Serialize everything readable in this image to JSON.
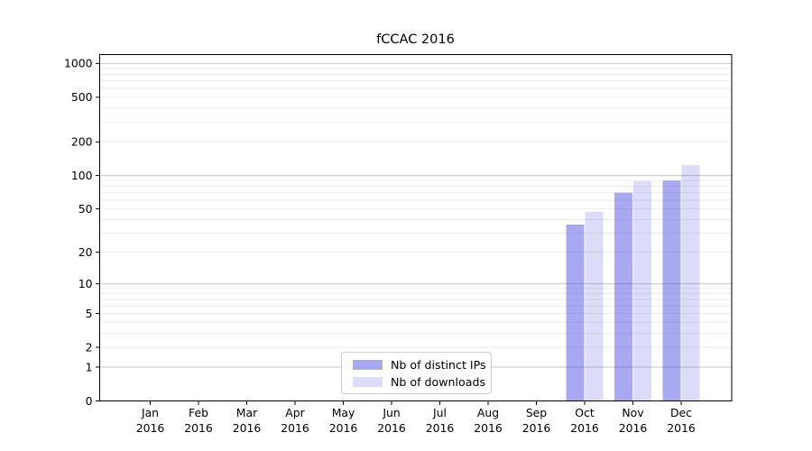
{
  "figure": {
    "title": "fCCAC 2016"
  },
  "legend": {
    "items": [
      {
        "label": "Nb of distinct IPs",
        "color": "rgba(40,40,220,0.40)"
      },
      {
        "label": "Nb of downloads",
        "color": "rgba(40,40,220,0.165)"
      }
    ]
  },
  "chart_data": {
    "type": "bar",
    "title": "fCCAC 2016",
    "categories": [
      "Jan",
      "Feb",
      "Mar",
      "Apr",
      "May",
      "Jun",
      "Jul",
      "Aug",
      "Sep",
      "Oct",
      "Nov",
      "Dec"
    ],
    "category_year": "2016",
    "series": [
      {
        "name": "Nb of distinct IPs",
        "color": "rgba(40,40,220,0.40)",
        "values": [
          0,
          0,
          0,
          0,
          0,
          0,
          0,
          0,
          0,
          36,
          70,
          90
        ]
      },
      {
        "name": "Nb of downloads",
        "color": "rgba(40,40,220,0.165)",
        "values": [
          0,
          0,
          0,
          0,
          0,
          0,
          0,
          0,
          0,
          47,
          89,
          124
        ]
      }
    ],
    "yscale": "log10(1+v)",
    "yticks": [
      0,
      1,
      2,
      5,
      10,
      20,
      50,
      100,
      200,
      500,
      1000
    ],
    "ylim": [
      0,
      1200
    ],
    "xlabel": "",
    "ylabel": "",
    "grid": true,
    "legend_position": "lower center",
    "colors": {
      "major_gridline": "#c6c6c6",
      "minor_gridline": "#eaeaea",
      "axis": "#000000",
      "background": "#ffffff"
    }
  }
}
